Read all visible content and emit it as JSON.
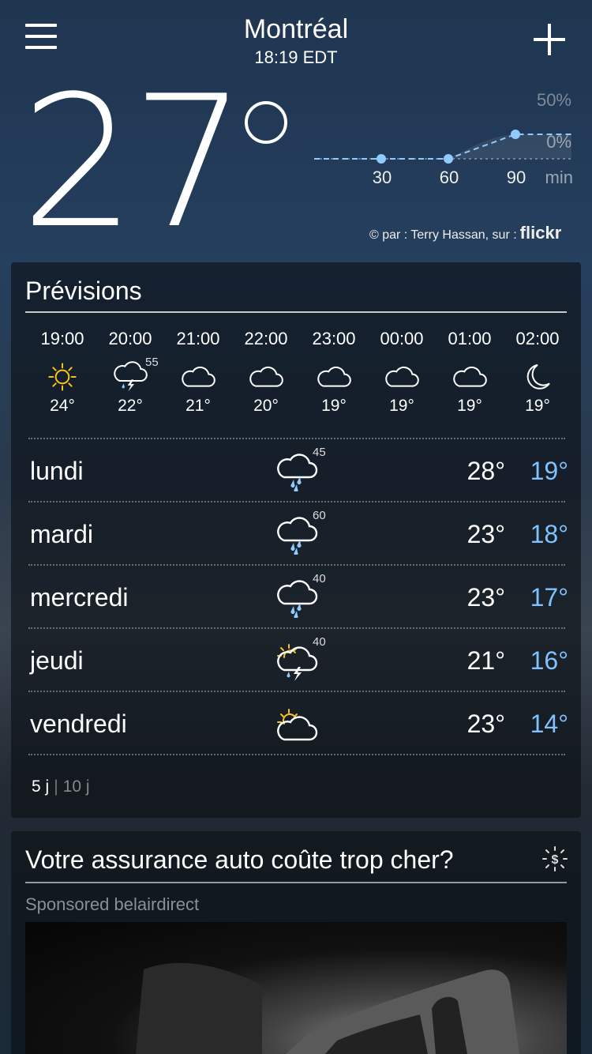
{
  "header": {
    "city": "Montréal",
    "time": "18:19 EDT"
  },
  "current": {
    "temp": "27"
  },
  "precip_chart": {
    "type": "line",
    "y_labels": [
      "50%",
      "0%"
    ],
    "x_labels": [
      "30",
      "60",
      "90"
    ],
    "x_unit": "min",
    "x": [
      0,
      30,
      60,
      90,
      120
    ],
    "y": [
      0,
      0,
      0,
      5,
      5
    ],
    "color": "#8fcbff"
  },
  "credit": {
    "text": "par : Terry Hassan, sur :",
    "brand": "flickr"
  },
  "forecast": {
    "title": "Prévisions",
    "hourly": [
      {
        "time": "19:00",
        "icon": "sun-icon",
        "temp": "24°",
        "precip": ""
      },
      {
        "time": "20:00",
        "icon": "thunderstorm-icon",
        "temp": "22°",
        "precip": "55"
      },
      {
        "time": "21:00",
        "icon": "cloud-icon",
        "temp": "21°",
        "precip": ""
      },
      {
        "time": "22:00",
        "icon": "cloud-icon",
        "temp": "20°",
        "precip": ""
      },
      {
        "time": "23:00",
        "icon": "cloud-icon",
        "temp": "19°",
        "precip": ""
      },
      {
        "time": "00:00",
        "icon": "cloud-icon",
        "temp": "19°",
        "precip": ""
      },
      {
        "time": "01:00",
        "icon": "cloud-icon",
        "temp": "19°",
        "precip": ""
      },
      {
        "time": "02:00",
        "icon": "moon-icon",
        "temp": "19°",
        "precip": ""
      }
    ],
    "daily": [
      {
        "day": "lundi",
        "icon": "rain-icon",
        "precip": "45",
        "high": "28°",
        "low": "19°"
      },
      {
        "day": "mardi",
        "icon": "rain-icon",
        "precip": "60",
        "high": "23°",
        "low": "18°"
      },
      {
        "day": "mercredi",
        "icon": "rain-icon",
        "precip": "40",
        "high": "23°",
        "low": "17°"
      },
      {
        "day": "jeudi",
        "icon": "sun-thunderstorm-icon",
        "precip": "40",
        "high": "21°",
        "low": "16°"
      },
      {
        "day": "vendredi",
        "icon": "partly-sunny-icon",
        "precip": "",
        "high": "23°",
        "low": "14°"
      }
    ],
    "tabs": {
      "active": "5 j",
      "other": "10 j"
    }
  },
  "ad": {
    "title": "Votre assurance auto coûte trop cher?",
    "sponsor": "Sponsored belairdirect"
  },
  "colors": {
    "low_temp": "#7fc2ff",
    "sun": "#f5c31c",
    "rain": "#8fcbff"
  }
}
